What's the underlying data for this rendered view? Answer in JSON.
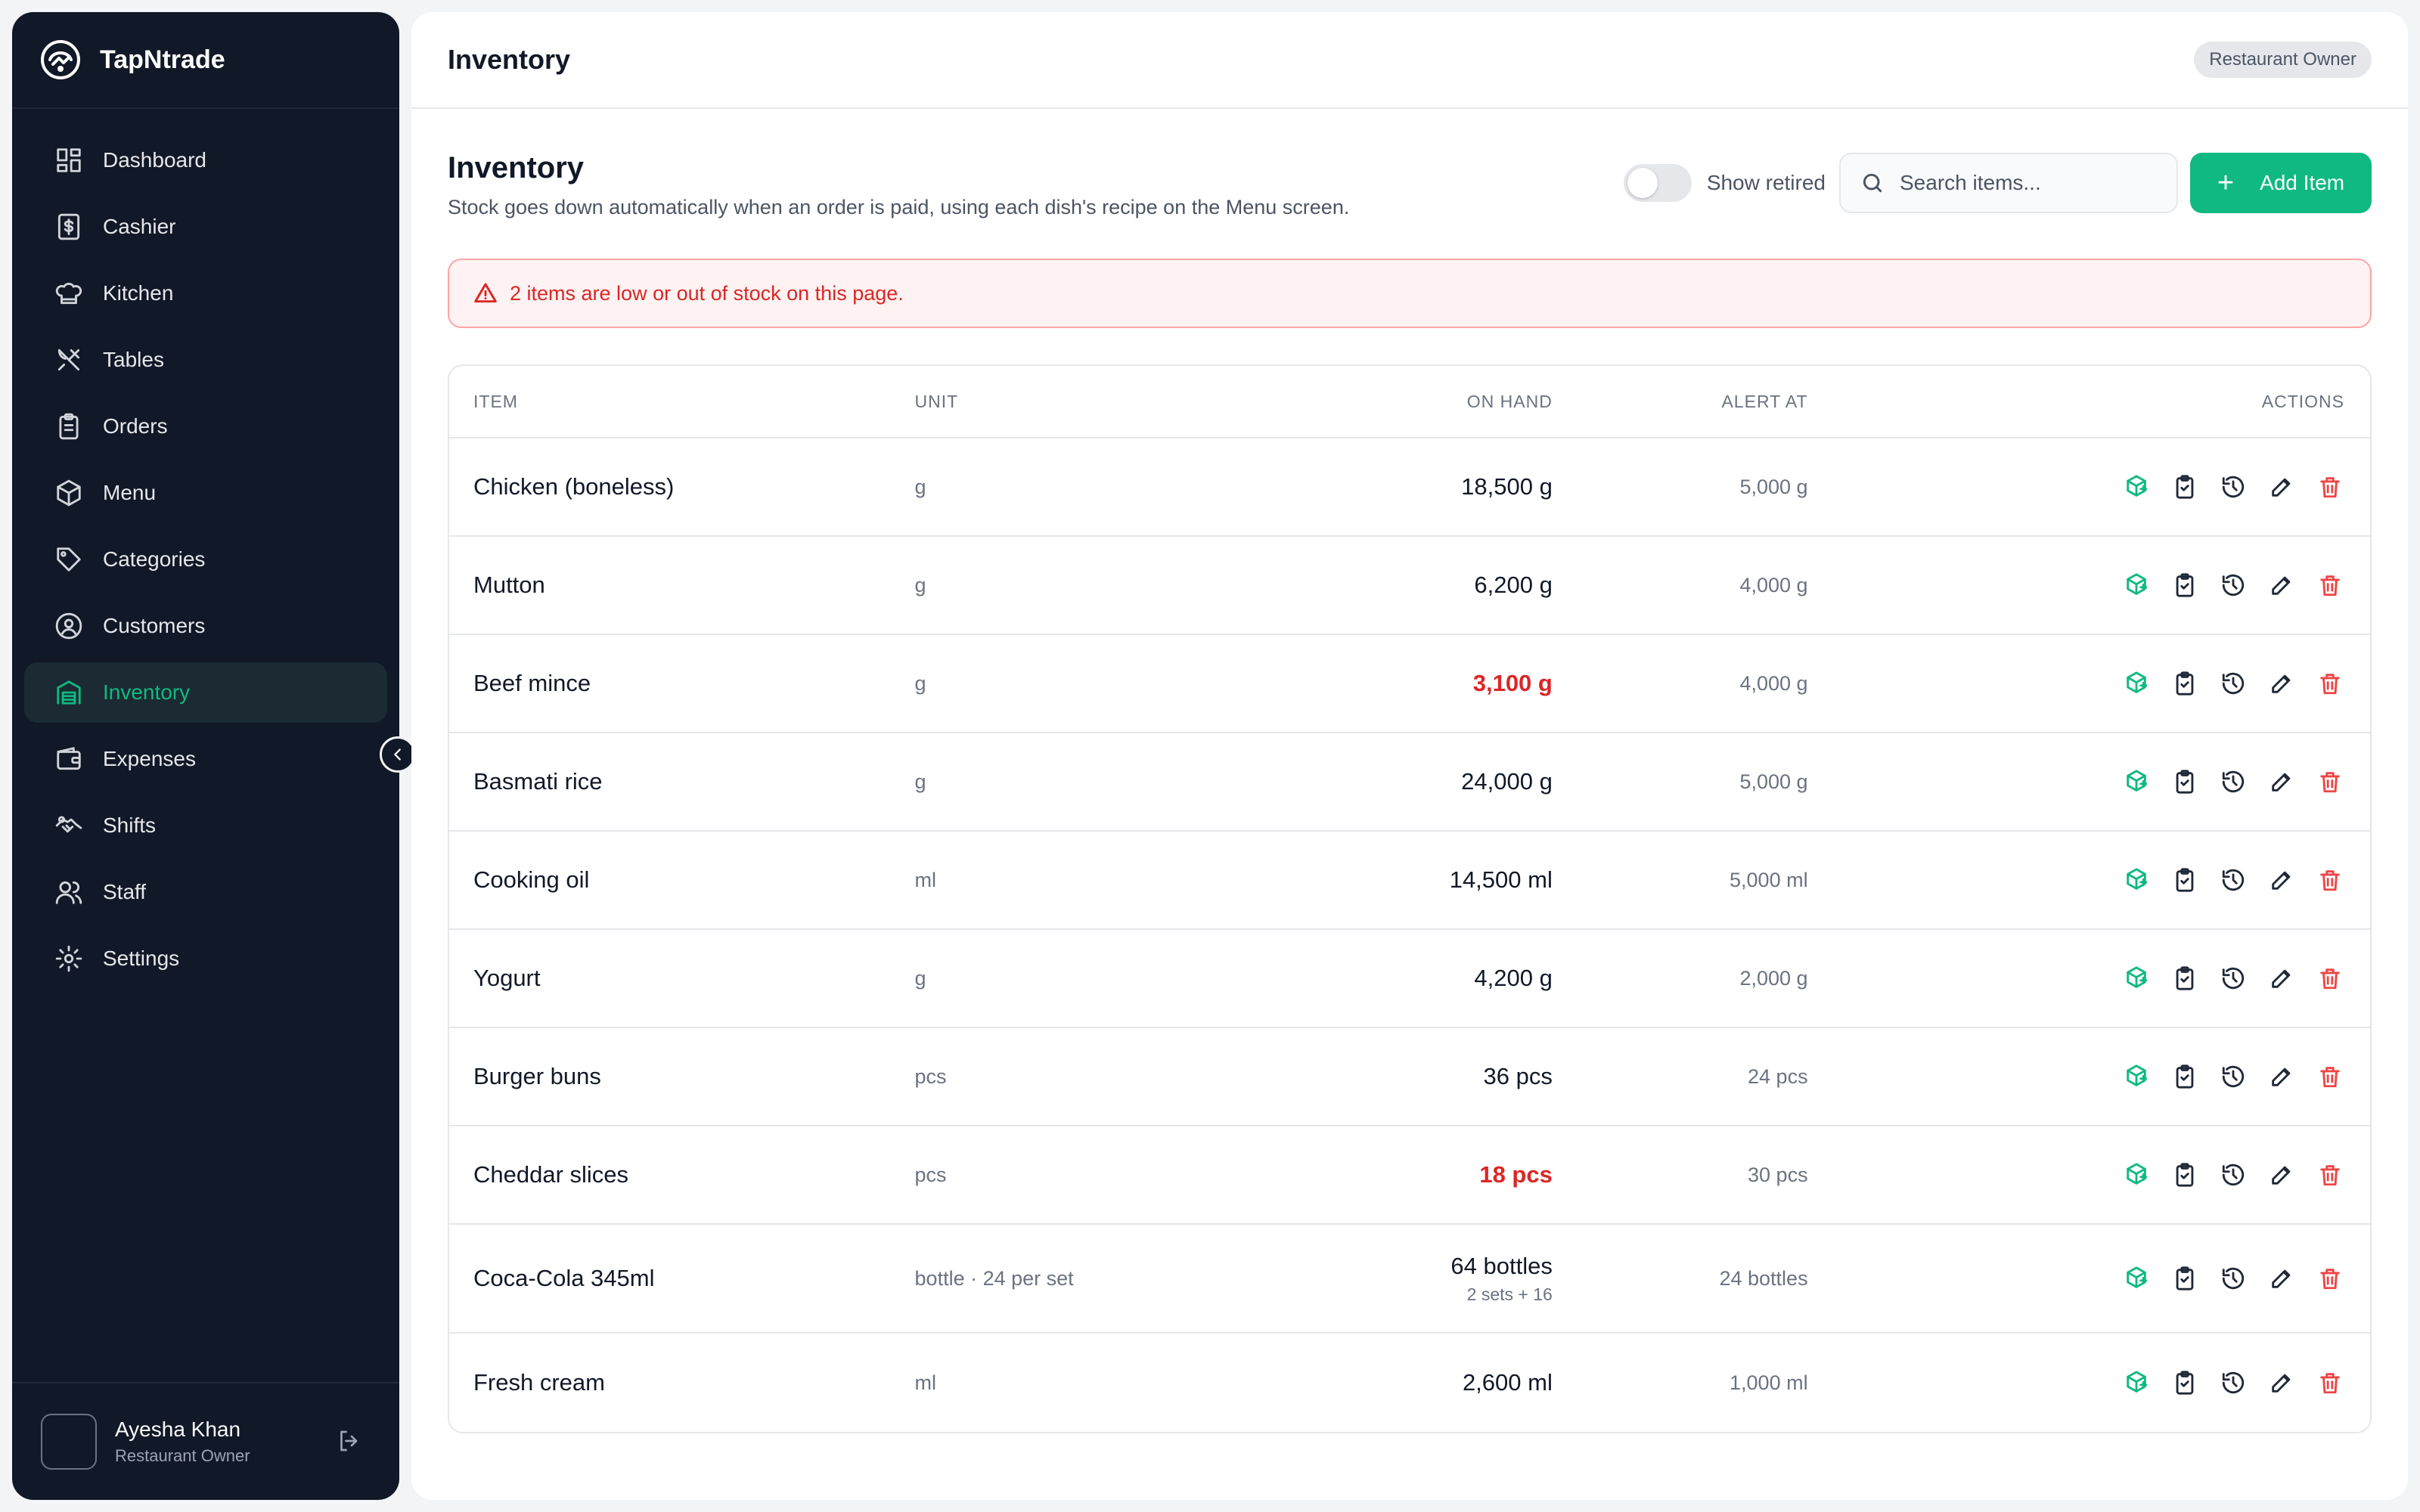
{
  "brand": {
    "name": "TapNtrade"
  },
  "sidebar": {
    "items": [
      {
        "label": "Dashboard",
        "icon": "dashboard-icon"
      },
      {
        "label": "Cashier",
        "icon": "cashier-icon"
      },
      {
        "label": "Kitchen",
        "icon": "chef-hat-icon"
      },
      {
        "label": "Tables",
        "icon": "utensils-icon"
      },
      {
        "label": "Orders",
        "icon": "clipboard-icon"
      },
      {
        "label": "Menu",
        "icon": "box-icon"
      },
      {
        "label": "Categories",
        "icon": "tag-icon"
      },
      {
        "label": "Customers",
        "icon": "user-circle-icon"
      },
      {
        "label": "Inventory",
        "icon": "warehouse-icon",
        "active": true
      },
      {
        "label": "Expenses",
        "icon": "wallet-icon"
      },
      {
        "label": "Shifts",
        "icon": "handshake-icon"
      },
      {
        "label": "Staff",
        "icon": "users-icon"
      },
      {
        "label": "Settings",
        "icon": "gear-icon"
      }
    ]
  },
  "user": {
    "name": "Ayesha Khan",
    "role": "Restaurant Owner"
  },
  "topbar": {
    "title": "Inventory",
    "role_badge": "Restaurant Owner"
  },
  "page": {
    "title": "Inventory",
    "subtitle": "Stock goes down automatically when an order is paid, using each dish's recipe on the Menu screen.",
    "show_retired_label": "Show retired",
    "show_retired": false,
    "search_placeholder": "Search items...",
    "add_button": "Add Item"
  },
  "alert": {
    "text": "2 items are low or out of stock on this page."
  },
  "table": {
    "headers": {
      "item": "ITEM",
      "unit": "UNIT",
      "on_hand": "ON HAND",
      "alert_at": "ALERT AT",
      "actions": "ACTIONS"
    },
    "rows": [
      {
        "item": "Chicken (boneless)",
        "unit": "g",
        "on_hand": "18,500 g",
        "alert_at": "5,000 g",
        "low": false
      },
      {
        "item": "Mutton",
        "unit": "g",
        "on_hand": "6,200 g",
        "alert_at": "4,000 g",
        "low": false
      },
      {
        "item": "Beef mince",
        "unit": "g",
        "on_hand": "3,100 g",
        "alert_at": "4,000 g",
        "low": true
      },
      {
        "item": "Basmati rice",
        "unit": "g",
        "on_hand": "24,000 g",
        "alert_at": "5,000 g",
        "low": false
      },
      {
        "item": "Cooking oil",
        "unit": "ml",
        "on_hand": "14,500 ml",
        "alert_at": "5,000 ml",
        "low": false
      },
      {
        "item": "Yogurt",
        "unit": "g",
        "on_hand": "4,200 g",
        "alert_at": "2,000 g",
        "low": false
      },
      {
        "item": "Burger buns",
        "unit": "pcs",
        "on_hand": "36 pcs",
        "alert_at": "24 pcs",
        "low": false
      },
      {
        "item": "Cheddar slices",
        "unit": "pcs",
        "on_hand": "18 pcs",
        "alert_at": "30 pcs",
        "low": true
      },
      {
        "item": "Coca-Cola 345ml",
        "unit": "bottle · 24 per set",
        "on_hand": "64 bottles",
        "on_hand_note": "2 sets + 16",
        "alert_at": "24 bottles",
        "low": false
      },
      {
        "item": "Fresh cream",
        "unit": "ml",
        "on_hand": "2,600 ml",
        "alert_at": "1,000 ml",
        "low": false
      }
    ]
  },
  "colors": {
    "accent": "#10b981",
    "sidebar_bg": "#111827",
    "danger": "#dc2626"
  }
}
